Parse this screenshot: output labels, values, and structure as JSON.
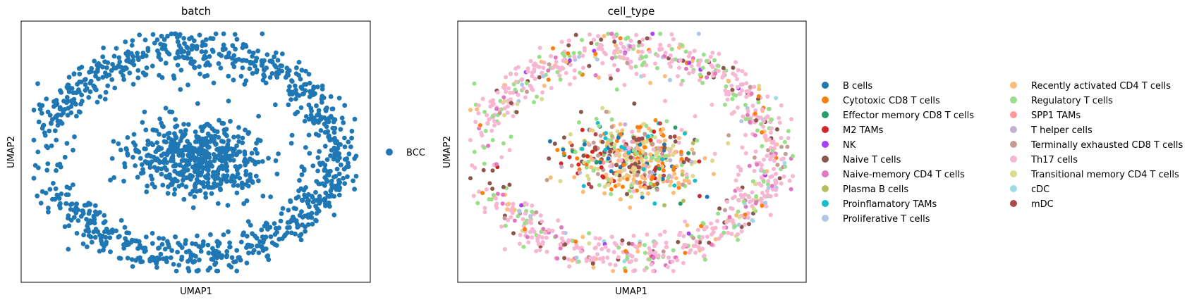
{
  "chart_data": [
    {
      "type": "scatter",
      "title": "batch",
      "xlabel": "UMAP1",
      "ylabel": "UMAP2",
      "xticks": [],
      "yticks": [],
      "grid": false,
      "legend_position": "right",
      "legend": [
        {
          "name": "BCC",
          "color": "#1f77b4"
        }
      ],
      "point_count_description": "approx. 1500 points: central blob plus surrounding ring",
      "series": [
        {
          "name": "BCC",
          "color": "#1f77b4",
          "mix_weight": 1
        }
      ]
    },
    {
      "type": "scatter",
      "title": "cell_type",
      "xlabel": "UMAP1",
      "ylabel": "UMAP2",
      "xticks": [],
      "yticks": [],
      "grid": false,
      "legend_position": "right",
      "legend": [
        {
          "name": "B cells",
          "color": "#1f77b4"
        },
        {
          "name": "Cytotoxic CD8 T cells",
          "color": "#ff7f0e"
        },
        {
          "name": "Effector memory CD8 T cells",
          "color": "#279e68"
        },
        {
          "name": "M2 TAMs",
          "color": "#d62728"
        },
        {
          "name": "NK",
          "color": "#aa40fc"
        },
        {
          "name": "Naive T cells",
          "color": "#8c564b"
        },
        {
          "name": "Naive-memory CD4 T cells",
          "color": "#e377c2"
        },
        {
          "name": "Plasma B cells",
          "color": "#b5bd61"
        },
        {
          "name": "Proinflamatory TAMs",
          "color": "#17becf"
        },
        {
          "name": "Proliferative T cells",
          "color": "#aec7e8"
        },
        {
          "name": "Recently activated CD4 T cells",
          "color": "#ffbb78"
        },
        {
          "name": "Regulatory T cells",
          "color": "#98df8a"
        },
        {
          "name": "SPP1 TAMs",
          "color": "#ff9896"
        },
        {
          "name": "T helper cells",
          "color": "#c5b0d5"
        },
        {
          "name": "Terminally exhausted CD8 T cells",
          "color": "#c49c94"
        },
        {
          "name": "Th17 cells",
          "color": "#f7b6d2"
        },
        {
          "name": "Transitional memory CD4 T cells",
          "color": "#dbdb8d"
        },
        {
          "name": "cDC",
          "color": "#9edae5"
        },
        {
          "name": "mDC",
          "color": "#ad494a"
        }
      ]
    }
  ]
}
